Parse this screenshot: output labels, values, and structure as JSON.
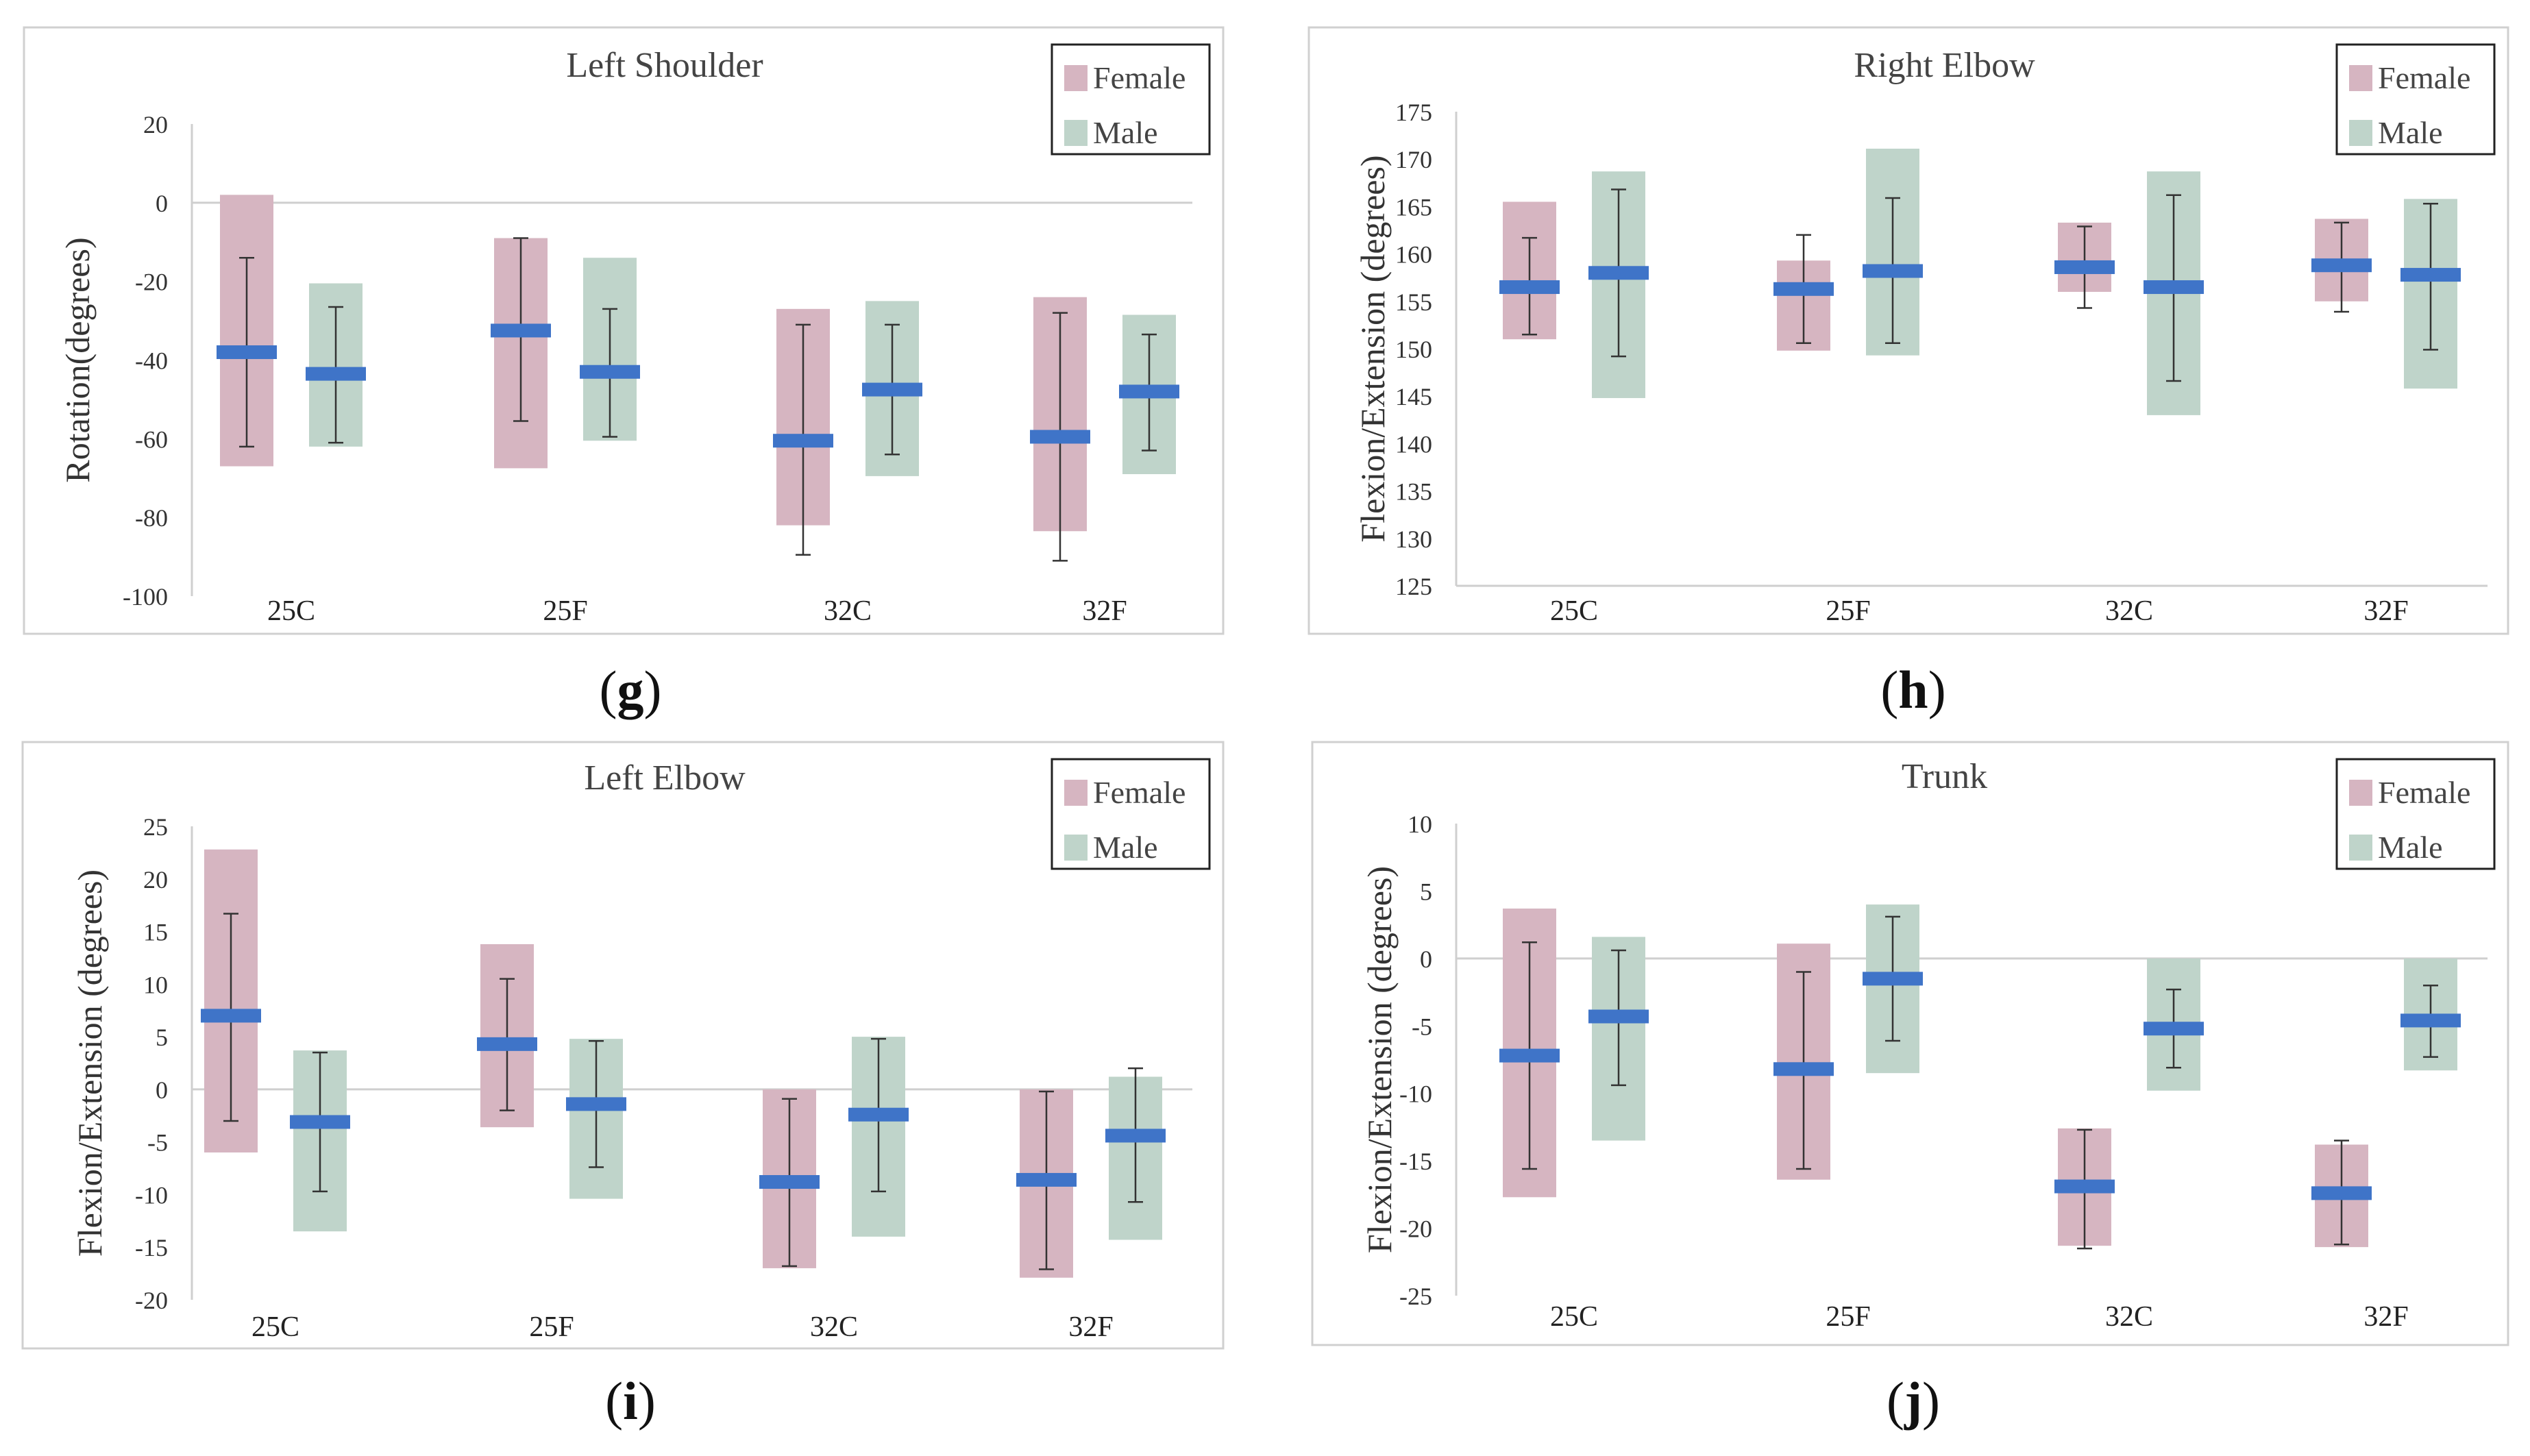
{
  "legend": {
    "female": "Female",
    "male": "Male"
  },
  "colors": {
    "female_box": "#d6b5c1",
    "male_box": "#bfd4ca",
    "mean_bar": "#3f74c8",
    "whisker": "#333333",
    "axis_line": "#cfcfcf",
    "frame": "#d0d0d0"
  },
  "chart_data": [
    {
      "type": "range-box",
      "panel_label": "g",
      "title": "Left Shoulder",
      "ylabel": "Rotation(degrees)",
      "xlabel": "",
      "categories": [
        "25C",
        "25F",
        "32C",
        "32F"
      ],
      "ylim": [
        -100,
        20
      ],
      "yticks": [
        -100,
        -80,
        -60,
        -40,
        -20,
        0,
        20
      ],
      "grid": false,
      "legend_position": "top-right",
      "series": [
        {
          "name": "Female",
          "box": [
            [
              -67,
              2
            ],
            [
              -67.5,
              -9
            ],
            [
              -82,
              -27
            ],
            [
              -83.5,
              -24
            ]
          ],
          "mean": [
            -38,
            -32.5,
            -60.5,
            -59.5
          ],
          "whisker": [
            [
              -62,
              -14
            ],
            [
              -55.5,
              -9
            ],
            [
              -89.5,
              -31
            ],
            [
              -91,
              -28
            ]
          ]
        },
        {
          "name": "Male",
          "box": [
            [
              -62,
              -20.5
            ],
            [
              -60.5,
              -14
            ],
            [
              -69.5,
              -25
            ],
            [
              -69,
              -28.5
            ]
          ],
          "mean": [
            -43.5,
            -43,
            -47.5,
            -48
          ],
          "whisker": [
            [
              -61,
              -26.5
            ],
            [
              -59.5,
              -27
            ],
            [
              -64,
              -31
            ],
            [
              -63,
              -33.5
            ]
          ]
        }
      ]
    },
    {
      "type": "range-box",
      "panel_label": "h",
      "title": "Right Elbow",
      "ylabel": "Flexion/Extension (degrees)",
      "xlabel": "",
      "categories": [
        "25C",
        "25F",
        "32C",
        "32F"
      ],
      "ylim": [
        125,
        175
      ],
      "yticks": [
        125,
        130,
        135,
        140,
        145,
        150,
        155,
        160,
        165,
        170,
        175
      ],
      "grid": false,
      "legend_position": "top-right",
      "series": [
        {
          "name": "Female",
          "box": [
            [
              151,
              165.5
            ],
            [
              149.8,
              159.3
            ],
            [
              156,
              163.3
            ],
            [
              155,
              163.7
            ]
          ],
          "mean": [
            156.5,
            156.3,
            158.6,
            158.8
          ],
          "whisker": [
            [
              151.5,
              161.7
            ],
            [
              150.6,
              162
            ],
            [
              154.3,
              162.9
            ],
            [
              153.9,
              163.3
            ]
          ]
        },
        {
          "name": "Male",
          "box": [
            [
              144.8,
              168.7
            ],
            [
              149.3,
              171.1
            ],
            [
              143,
              168.7
            ],
            [
              145.8,
              165.8
            ]
          ],
          "mean": [
            158,
            158.2,
            156.5,
            157.8
          ],
          "whisker": [
            [
              149.2,
              166.8
            ],
            [
              150.6,
              165.9
            ],
            [
              146.6,
              166.2
            ],
            [
              149.9,
              165.3
            ]
          ]
        }
      ]
    },
    {
      "type": "range-box",
      "panel_label": "i",
      "title": "Left Elbow",
      "ylabel": "Flexion/Extension (degrees)",
      "xlabel": "",
      "categories": [
        "25C",
        "25F",
        "32C",
        "32F"
      ],
      "ylim": [
        -20,
        25
      ],
      "yticks": [
        -20,
        -15,
        -10,
        -5,
        0,
        5,
        10,
        15,
        20,
        25
      ],
      "grid": false,
      "legend_position": "top-right",
      "series": [
        {
          "name": "Female",
          "box": [
            [
              -6,
              22.8
            ],
            [
              -3.6,
              13.8
            ],
            [
              -17,
              0
            ],
            [
              -17.9,
              0
            ]
          ],
          "mean": [
            7,
            4.3,
            -8.8,
            -8.6
          ],
          "whisker": [
            [
              -3,
              16.7
            ],
            [
              -2,
              10.5
            ],
            [
              -16.8,
              -0.9
            ],
            [
              -17.1,
              -0.2
            ]
          ]
        },
        {
          "name": "Male",
          "box": [
            [
              -13.5,
              3.7
            ],
            [
              -10.4,
              4.8
            ],
            [
              -14,
              5
            ],
            [
              -14.3,
              1.2
            ]
          ],
          "mean": [
            -3.1,
            -1.4,
            -2.4,
            -4.4
          ],
          "whisker": [
            [
              -9.7,
              3.5
            ],
            [
              -7.4,
              4.6
            ],
            [
              -9.7,
              4.8
            ],
            [
              -10.7,
              2
            ]
          ]
        }
      ]
    },
    {
      "type": "range-box",
      "panel_label": "j",
      "title": "Trunk",
      "ylabel": "Flexion/Extension (degrees)",
      "xlabel": "",
      "categories": [
        "25C",
        "25F",
        "32C",
        "32F"
      ],
      "ylim": [
        -25,
        10
      ],
      "yticks": [
        -25,
        -20,
        -15,
        -10,
        -5,
        0,
        5,
        10
      ],
      "grid": false,
      "legend_position": "top-right",
      "series": [
        {
          "name": "Female",
          "box": [
            [
              -17.7,
              3.7
            ],
            [
              -16.4,
              1.1
            ],
            [
              -21.3,
              -12.6
            ],
            [
              -21.4,
              -13.8
            ]
          ],
          "mean": [
            -7.2,
            -8.2,
            -16.9,
            -17.4
          ],
          "whisker": [
            [
              -15.6,
              1.2
            ],
            [
              -15.6,
              -1
            ],
            [
              -21.5,
              -12.7
            ],
            [
              -21.2,
              -13.5
            ]
          ]
        },
        {
          "name": "Male",
          "box": [
            [
              -13.5,
              1.6
            ],
            [
              -8.5,
              4
            ],
            [
              -9.8,
              0
            ],
            [
              -8.3,
              0
            ]
          ],
          "mean": [
            -4.3,
            -1.5,
            -5.2,
            -4.6
          ],
          "whisker": [
            [
              -9.4,
              0.6
            ],
            [
              -6.1,
              3.1
            ],
            [
              -8.1,
              -2.3
            ],
            [
              -7.3,
              -2
            ]
          ]
        }
      ]
    }
  ]
}
